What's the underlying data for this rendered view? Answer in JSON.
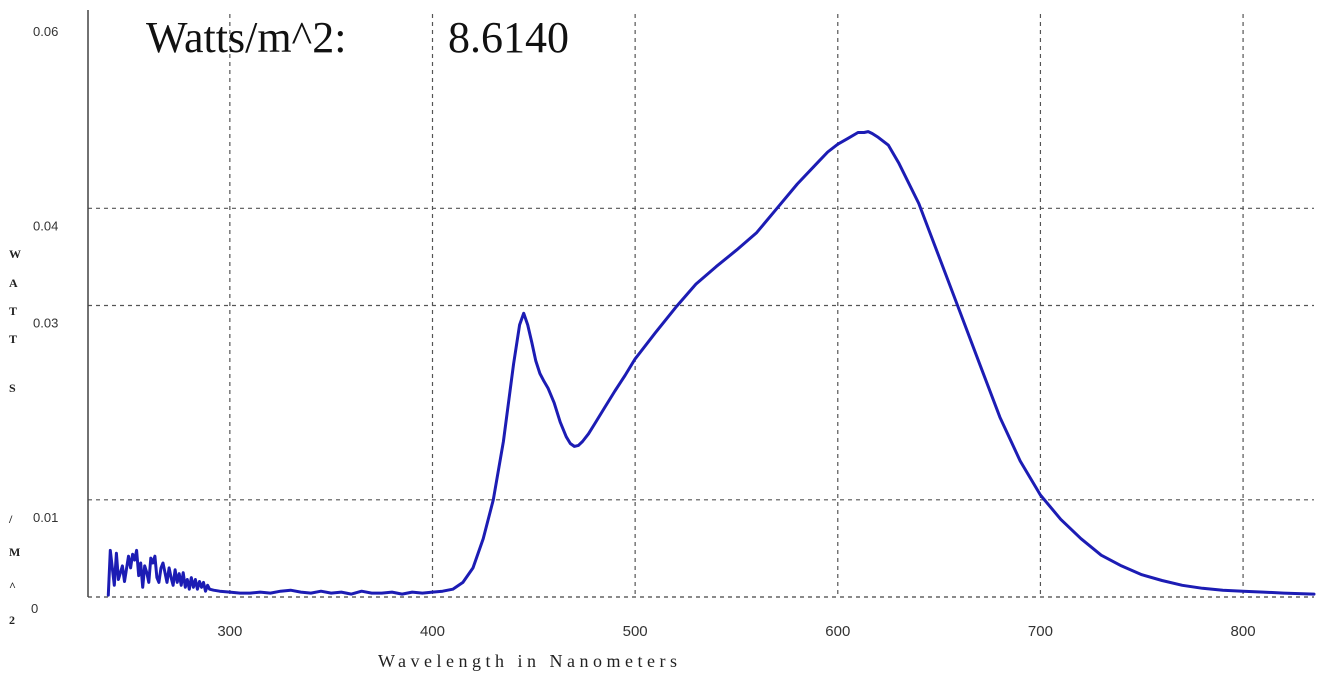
{
  "chart_data": {
    "type": "line",
    "title_label": "Watts/m^2:",
    "title_value": "8.6140",
    "xlabel": "Wavelength in Nanometers",
    "ylabel": "WATTS/M^2",
    "ylabel_letters": [
      "W",
      "A",
      "T",
      "T",
      "S",
      "/",
      "M",
      "^",
      "2"
    ],
    "xlim": [
      230,
      835
    ],
    "ylim": [
      0,
      0.06
    ],
    "x_ticks": [
      300,
      400,
      500,
      600,
      700,
      800
    ],
    "x_tick_labels": [
      "300",
      "400",
      "500",
      "600",
      "700",
      "800"
    ],
    "y_ticks": [
      0,
      0.01,
      0.03,
      0.04,
      0.06
    ],
    "y_tick_labels": [
      "0",
      "0.01",
      "0.03",
      "0.04",
      "0.06"
    ],
    "y_gridlines": [
      0.01,
      0.03,
      0.04
    ],
    "grid": true,
    "grid_style": "dashed",
    "line_color": "#1c1cb4",
    "series": [
      {
        "x": [
          240,
          241,
          243,
          244,
          245,
          246,
          247,
          248,
          250,
          251,
          252,
          253,
          254,
          255,
          256,
          257,
          258,
          259,
          260,
          261,
          262,
          263,
          264,
          265,
          266,
          267,
          268,
          269,
          270,
          271,
          272,
          273,
          274,
          275,
          276,
          277,
          278,
          279,
          280,
          281,
          282,
          283,
          284,
          285,
          286,
          287,
          288,
          289,
          290,
          292,
          295,
          300,
          305,
          310,
          315,
          320,
          325,
          330,
          335,
          340,
          345,
          350,
          355,
          360,
          365,
          370,
          375,
          380,
          385,
          390,
          395,
          400,
          405,
          410,
          415,
          420,
          425,
          430,
          435,
          440,
          443,
          445,
          447,
          449,
          451,
          453,
          455,
          457,
          460,
          463,
          466,
          468,
          470,
          472,
          474,
          477,
          480,
          485,
          490,
          495,
          500,
          510,
          520,
          530,
          540,
          550,
          560,
          570,
          580,
          590,
          595,
          600,
          605,
          610,
          613,
          615,
          617,
          620,
          625,
          630,
          640,
          650,
          660,
          670,
          680,
          690,
          700,
          710,
          720,
          730,
          740,
          750,
          760,
          770,
          780,
          790,
          800,
          810,
          820,
          835
        ],
        "y": [
          0.0002,
          0.0048,
          0.0012,
          0.0045,
          0.0018,
          0.0025,
          0.0032,
          0.0016,
          0.0042,
          0.003,
          0.0044,
          0.0038,
          0.0048,
          0.0022,
          0.0035,
          0.001,
          0.0032,
          0.0025,
          0.0015,
          0.004,
          0.0035,
          0.0042,
          0.002,
          0.0015,
          0.003,
          0.0035,
          0.0025,
          0.0015,
          0.003,
          0.002,
          0.0012,
          0.0028,
          0.0015,
          0.0024,
          0.0012,
          0.0025,
          0.001,
          0.0018,
          0.0008,
          0.002,
          0.001,
          0.0018,
          0.0008,
          0.0016,
          0.001,
          0.0015,
          0.0006,
          0.0012,
          0.0008,
          0.0007,
          0.0006,
          0.0005,
          0.0004,
          0.0004,
          0.0005,
          0.0004,
          0.0006,
          0.0007,
          0.0005,
          0.0004,
          0.0006,
          0.0004,
          0.0005,
          0.0003,
          0.0006,
          0.0004,
          0.0004,
          0.0005,
          0.0003,
          0.0005,
          0.0004,
          0.0005,
          0.0006,
          0.0008,
          0.0015,
          0.003,
          0.006,
          0.01,
          0.016,
          0.024,
          0.028,
          0.0292,
          0.028,
          0.0262,
          0.0243,
          0.023,
          0.0222,
          0.0215,
          0.02,
          0.018,
          0.0165,
          0.0158,
          0.0155,
          0.0156,
          0.016,
          0.0168,
          0.0178,
          0.0195,
          0.0212,
          0.0228,
          0.0245,
          0.0272,
          0.0298,
          0.0322,
          0.034,
          0.0357,
          0.0375,
          0.04,
          0.0425,
          0.0447,
          0.0458,
          0.0466,
          0.0472,
          0.0478,
          0.0478,
          0.0479,
          0.0477,
          0.0473,
          0.0465,
          0.0447,
          0.0405,
          0.035,
          0.0295,
          0.024,
          0.0185,
          0.014,
          0.0105,
          0.008,
          0.006,
          0.0043,
          0.0032,
          0.0023,
          0.0017,
          0.0012,
          0.0009,
          0.0007,
          0.0006,
          0.0005,
          0.0004,
          0.0003
        ]
      }
    ]
  }
}
